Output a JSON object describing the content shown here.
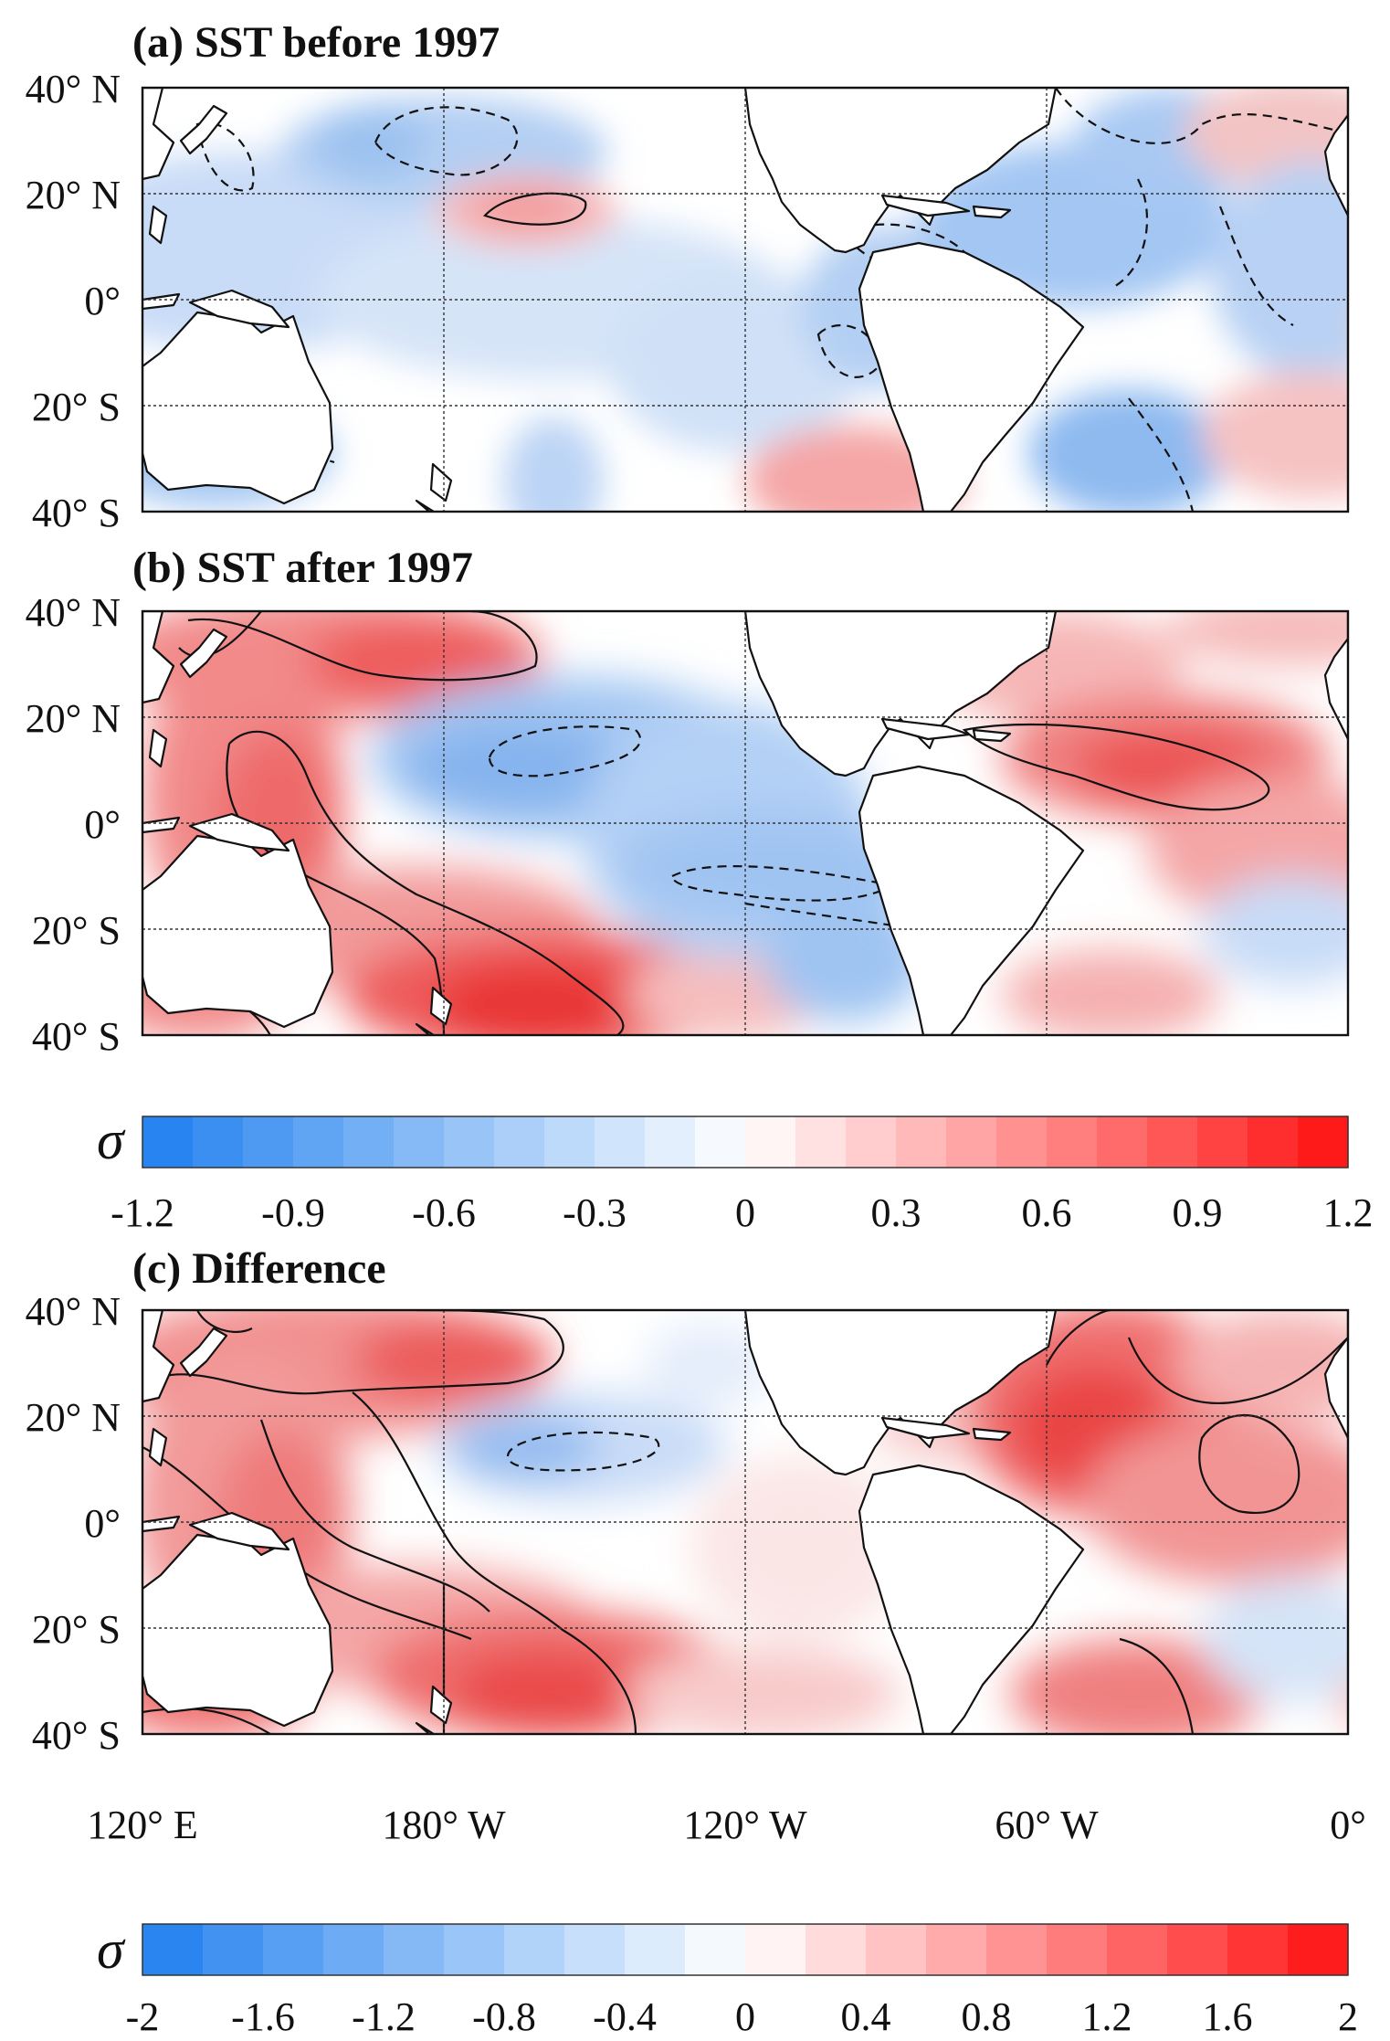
{
  "panels": [
    {
      "id": "a",
      "title": "(a) SST before 1997"
    },
    {
      "id": "b",
      "title": "(b) SST after 1997"
    },
    {
      "id": "c",
      "title": "(c) Difference"
    }
  ],
  "lat_labels": [
    "40° N",
    "20° N",
    "0°",
    "20° S",
    "40° S"
  ],
  "lon_labels": [
    "120° E",
    "180° W",
    "120° W",
    "60° W",
    "0°"
  ],
  "colorbar_ab": {
    "symbol": "σ",
    "min": -1.2,
    "max": 1.2,
    "step": 0.1,
    "ticks": [
      "-1.2",
      "-0.9",
      "-0.6",
      "-0.3",
      "0",
      "0.3",
      "0.6",
      "0.9",
      "1.2"
    ]
  },
  "colorbar_c": {
    "symbol": "σ",
    "min": -2,
    "max": 2,
    "step": 0.2,
    "ticks": [
      "-2",
      "-1.6",
      "-1.2",
      "-0.8",
      "-0.4",
      "0",
      "0.4",
      "0.8",
      "1.2",
      "1.6",
      "2"
    ]
  },
  "colors": {
    "negative_end": "#1f7fef",
    "neutral": "#ffffff",
    "positive_end": "#ff1010"
  }
}
